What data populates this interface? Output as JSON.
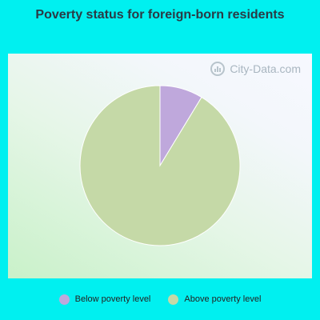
{
  "title": "Poverty status for foreign-born residents",
  "watermark": "City-Data.com",
  "colors": {
    "background": "#00f0f0",
    "below": "#bfa8dc",
    "above": "#c5d9a7"
  },
  "chart_data": {
    "type": "pie",
    "title": "Poverty status for foreign-born residents",
    "slices": [
      {
        "label": "Below poverty level",
        "value": 8.7,
        "color": "#bfa8dc"
      },
      {
        "label": "Above poverty level",
        "value": 91.3,
        "color": "#c5d9a7"
      }
    ],
    "legend_position": "bottom"
  },
  "legend": [
    {
      "label": "Below poverty level",
      "color": "#bfa8dc"
    },
    {
      "label": "Above poverty level",
      "color": "#c5d9a7"
    }
  ]
}
